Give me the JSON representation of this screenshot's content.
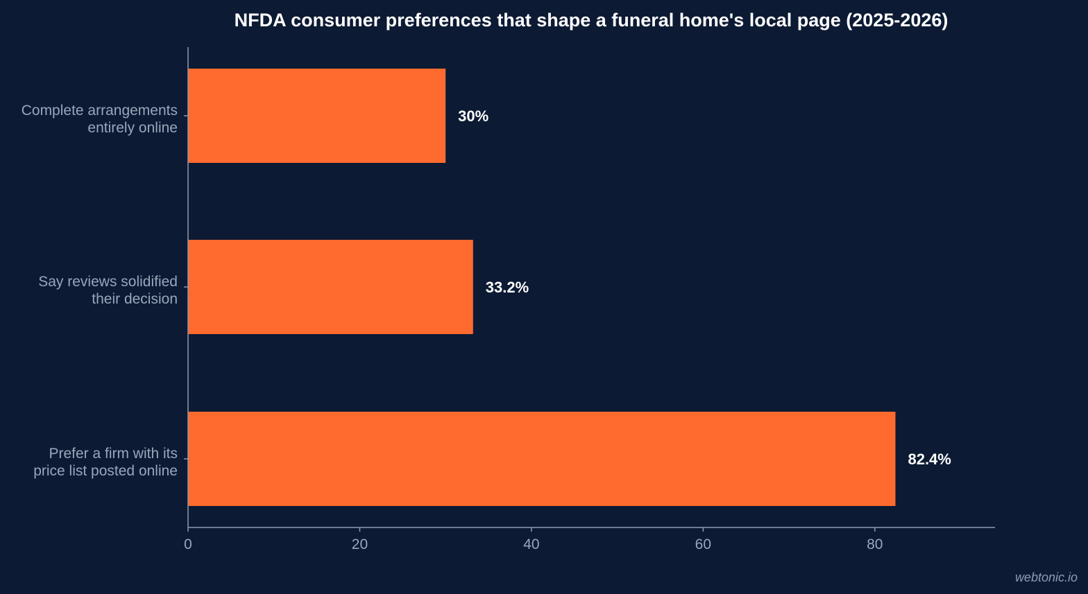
{
  "chart_data": {
    "type": "bar",
    "orientation": "horizontal",
    "title": "NFDA consumer preferences that shape a funeral home's local page (2025-2026)",
    "categories": [
      [
        "Complete arrangements",
        "entirely online"
      ],
      [
        "Say reviews solidified",
        "their decision"
      ],
      [
        "Prefer a firm with its",
        "price list posted online"
      ]
    ],
    "values": [
      30,
      33.2,
      82.4
    ],
    "value_labels": [
      "30%",
      "33.2%",
      "82.4%"
    ],
    "xlim": [
      0,
      94
    ],
    "xticks": [
      0,
      20,
      40,
      60,
      80
    ],
    "xlabel": "",
    "ylabel": "",
    "grid": false,
    "colors": {
      "background": "#0c1a33",
      "bar": "#ff6b2e",
      "axis": "#8f9bb0"
    }
  },
  "watermark": "webtonic.io"
}
